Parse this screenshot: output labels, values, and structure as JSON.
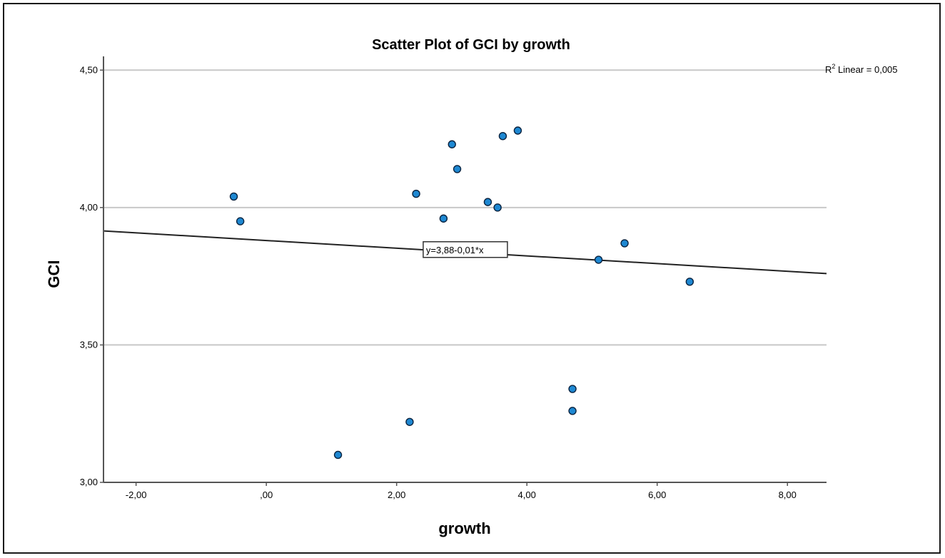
{
  "chart_data": {
    "type": "scatter",
    "title": "Scatter Plot of GCI by growth",
    "xlabel": "growth",
    "ylabel": "GCI",
    "xlim": [
      -2.5,
      8.6
    ],
    "ylim": [
      3.0,
      4.55
    ],
    "x_ticks": [
      -2,
      0,
      2,
      4,
      6,
      8
    ],
    "x_tick_labels": [
      "-2,00",
      ",00",
      "2,00",
      "4,00",
      "6,00",
      "8,00"
    ],
    "y_ticks": [
      3.0,
      3.5,
      4.0,
      4.5
    ],
    "y_tick_labels": [
      "3,00",
      "3,50",
      "4,00",
      "4,50"
    ],
    "grid": "horizontal",
    "points": [
      {
        "x": -0.5,
        "y": 4.04
      },
      {
        "x": -0.4,
        "y": 3.95
      },
      {
        "x": 1.1,
        "y": 3.1
      },
      {
        "x": 2.2,
        "y": 3.22
      },
      {
        "x": 2.3,
        "y": 4.05
      },
      {
        "x": 2.72,
        "y": 3.96
      },
      {
        "x": 2.85,
        "y": 4.23
      },
      {
        "x": 2.93,
        "y": 4.14
      },
      {
        "x": 3.4,
        "y": 4.02
      },
      {
        "x": 3.55,
        "y": 4.0
      },
      {
        "x": 3.63,
        "y": 4.26
      },
      {
        "x": 3.86,
        "y": 4.28
      },
      {
        "x": 4.7,
        "y": 3.34
      },
      {
        "x": 4.7,
        "y": 3.26
      },
      {
        "x": 5.1,
        "y": 3.81
      },
      {
        "x": 5.5,
        "y": 3.87
      },
      {
        "x": 6.5,
        "y": 3.73
      }
    ],
    "fit_line": {
      "intercept": 3.88,
      "slope": -0.014,
      "equation_label": "y=3,88-0,01*x",
      "label_x": 2.43,
      "label_y": 3.847
    },
    "r2_label": {
      "text_prefix": "R",
      "superscript": "2",
      "text_suffix": " Linear = 0,005"
    },
    "colors": {
      "point_fill": "#1e88d2",
      "point_stroke": "#0a2340",
      "fit_line": "#222222",
      "grid": "#c8c8c8",
      "axis": "#555555"
    }
  }
}
